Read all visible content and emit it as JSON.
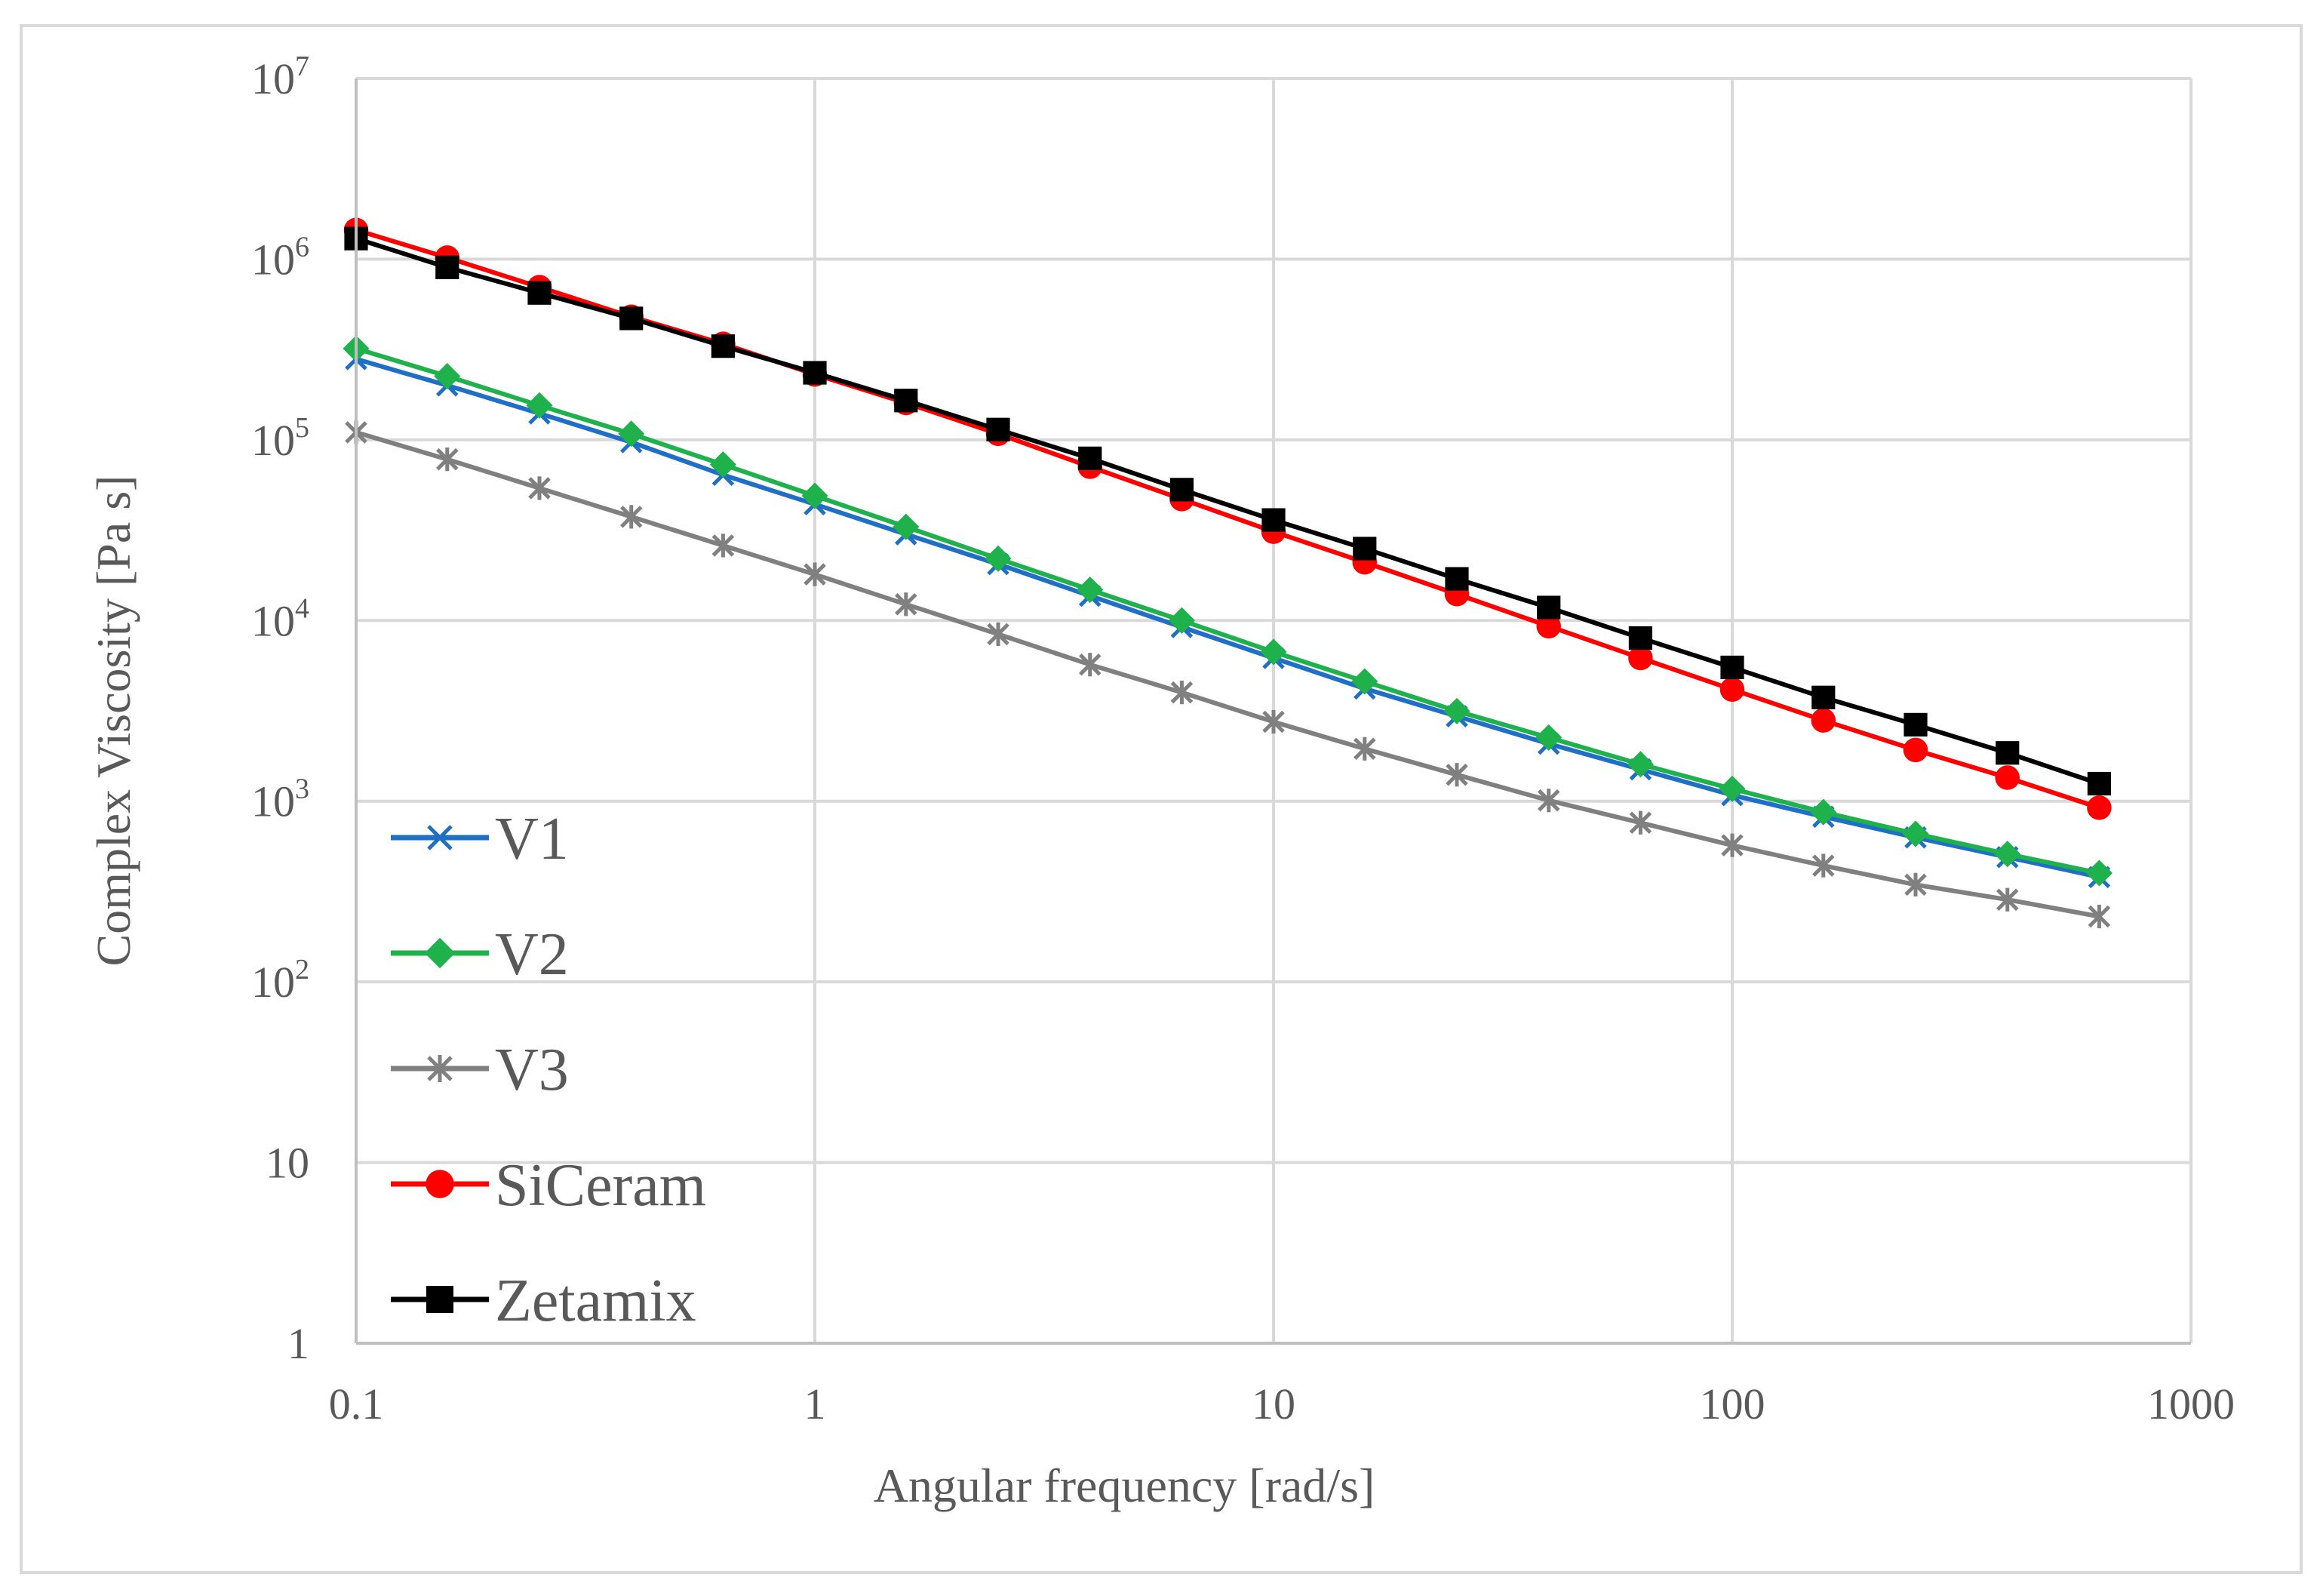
{
  "chart_data": {
    "type": "line",
    "title": "",
    "xlabel": "Angular frequency [rad/s]",
    "ylabel": "Complex Viscosity [Pa s]",
    "xscale": "log",
    "yscale": "log",
    "xlim": [
      0.1,
      1000
    ],
    "ylim": [
      1,
      10000000
    ],
    "grid": true,
    "legend_position": "bottom-left",
    "x_ticks": [
      {
        "value": 0.1,
        "label": "0.1"
      },
      {
        "value": 1,
        "label": "1"
      },
      {
        "value": 10,
        "label": "10"
      },
      {
        "value": 100,
        "label": "100"
      },
      {
        "value": 1000,
        "label": "1000"
      }
    ],
    "y_ticks": [
      {
        "value": 1,
        "base": "1",
        "exp": ""
      },
      {
        "value": 10,
        "base": "10",
        "exp": ""
      },
      {
        "value": 100,
        "base": "10",
        "exp": "2"
      },
      {
        "value": 1000,
        "base": "10",
        "exp": "3"
      },
      {
        "value": 10000,
        "base": "10",
        "exp": "4"
      },
      {
        "value": 100000,
        "base": "10",
        "exp": "5"
      },
      {
        "value": 1000000,
        "base": "10",
        "exp": "6"
      },
      {
        "value": 10000000,
        "base": "10",
        "exp": "7"
      }
    ],
    "x": [
      0.1,
      0.158,
      0.251,
      0.398,
      0.631,
      1,
      1.58,
      2.51,
      3.98,
      6.31,
      10,
      15.8,
      25.1,
      39.8,
      63.1,
      100,
      158,
      251,
      398,
      631
    ],
    "series": [
      {
        "name": "V1",
        "color": "#1F6FC6",
        "marker": "x",
        "values": [
          280000,
          200000,
          140000,
          97000,
          64000,
          44000,
          30000,
          20500,
          13700,
          9200,
          6200,
          4200,
          2950,
          2080,
          1500,
          1080,
          820,
          630,
          490,
          380
        ]
      },
      {
        "name": "V2",
        "color": "#1FB14C",
        "marker": "diamond",
        "values": [
          320000,
          225000,
          155000,
          108000,
          73000,
          49000,
          33000,
          22000,
          14800,
          10000,
          6700,
          4600,
          3150,
          2250,
          1600,
          1170,
          870,
          660,
          510,
          400
        ]
      },
      {
        "name": "V3",
        "color": "#808080",
        "marker": "star",
        "values": [
          110000,
          78000,
          54000,
          37500,
          26000,
          18000,
          12300,
          8400,
          5700,
          4000,
          2750,
          1950,
          1400,
          1010,
          760,
          570,
          440,
          345,
          285,
          230
        ]
      },
      {
        "name": "SiCeram",
        "color": "#FF0000",
        "marker": "circle",
        "values": [
          1450000,
          1020000,
          700000,
          480000,
          340000,
          230000,
          160000,
          108000,
          71000,
          47000,
          31000,
          21000,
          14000,
          9300,
          6200,
          4150,
          2800,
          1920,
          1350,
          920
        ]
      },
      {
        "name": "Zetamix",
        "color": "#000000",
        "marker": "square",
        "values": [
          1300000,
          900000,
          650000,
          470000,
          330000,
          235000,
          165000,
          114000,
          79000,
          53000,
          36000,
          25000,
          17000,
          11800,
          8000,
          5500,
          3750,
          2650,
          1850,
          1250
        ]
      }
    ]
  }
}
